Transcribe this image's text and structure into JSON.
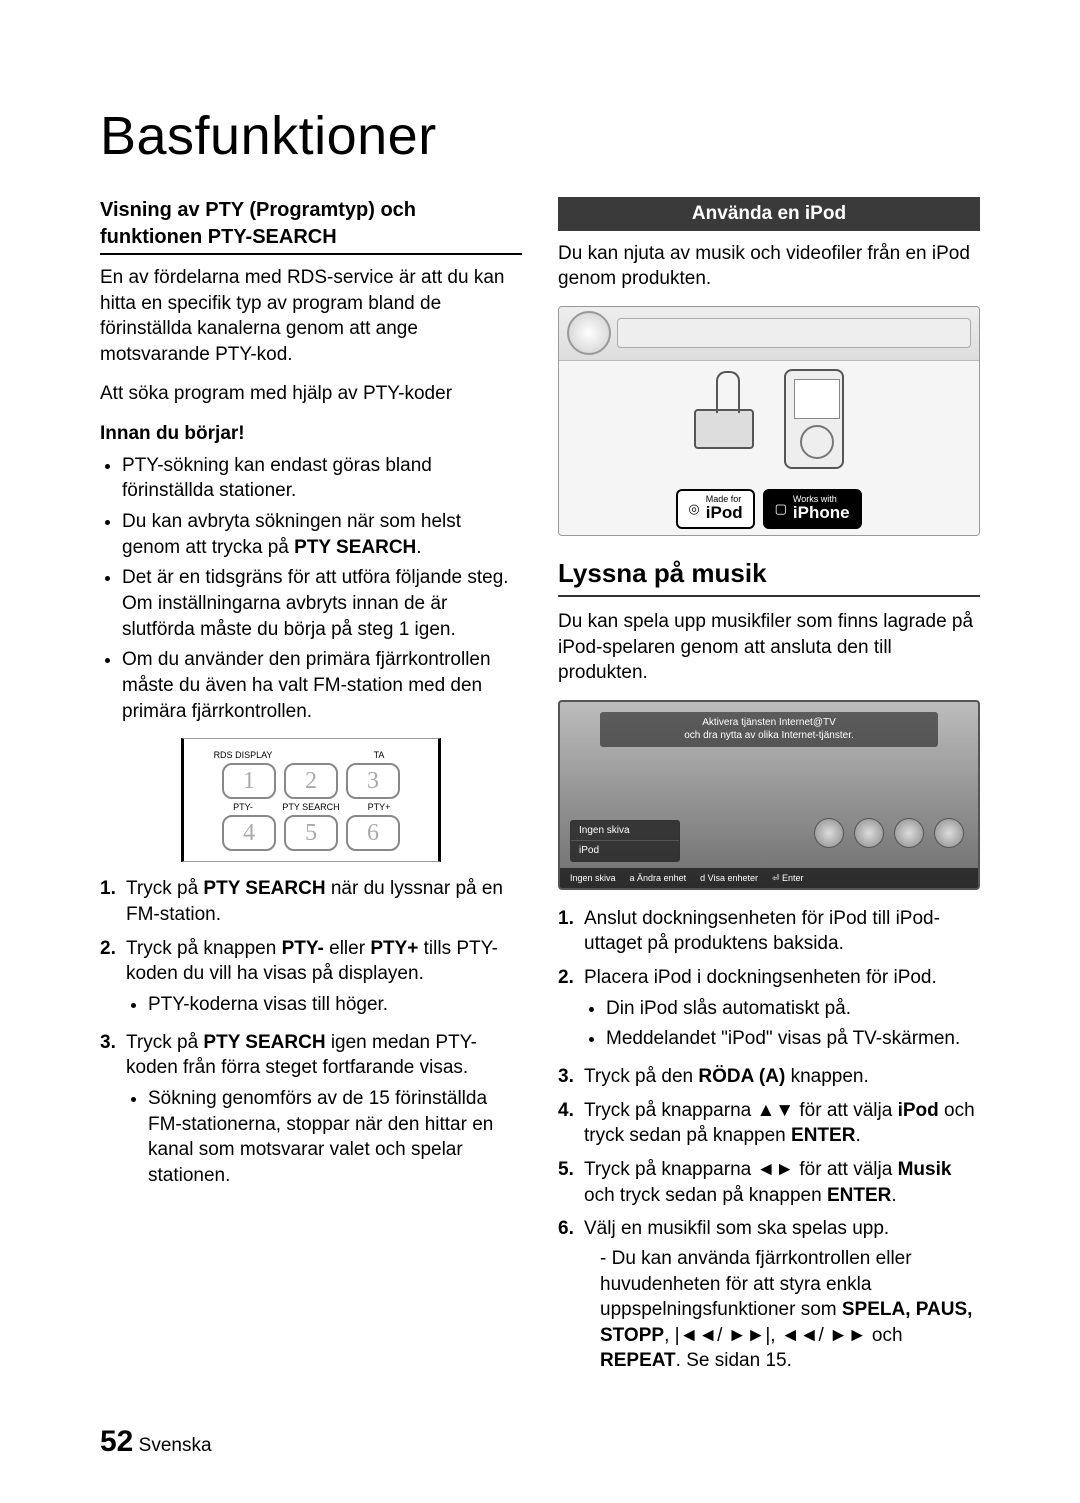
{
  "page": {
    "title": "Basfunktioner",
    "number": "52",
    "lang": "Svenska"
  },
  "left": {
    "h3_line1": "Visning av PTY (Programtyp) och",
    "h3_line2": "funktionen PTY-SEARCH",
    "intro": "En av fördelarna med RDS-service är att du kan hitta en specifik typ av program bland de förinställda kanalerna genom att ange motsvarande PTY-kod.",
    "sub1": "Att söka program med hjälp av PTY-koder",
    "sub2": "Innan du börjar!",
    "bullets": [
      "PTY-sökning kan endast göras bland förinställda stationer.",
      {
        "pre": "Du kan avbryta sökningen när som helst genom att trycka på ",
        "bold": "PTY SEARCH",
        "post": "."
      },
      "Det är en tidsgräns för att utföra följande steg. Om inställningarna avbryts innan de är slutförda måste du börja på steg 1 igen.",
      "Om du använder den primära fjärrkontrollen måste du även ha valt FM-station med den primära fjärrkontrollen."
    ],
    "remote": {
      "row1_labels": [
        "RDS DISPLAY",
        "",
        "TA"
      ],
      "row1_keys": [
        "1",
        "2",
        "3"
      ],
      "row2_labels": [
        "PTY-",
        "PTY SEARCH",
        "PTY+"
      ],
      "row2_keys": [
        "4",
        "5",
        "6"
      ]
    },
    "steps": [
      {
        "pre": "Tryck på ",
        "bold": "PTY SEARCH",
        "post": " när du lyssnar på en FM-station."
      },
      {
        "pre": "Tryck på knappen ",
        "bold": "PTY-",
        "mid": " eller ",
        "bold2": "PTY+",
        "post": " tills PTY-koden du vill ha visas på displayen.",
        "sub": "PTY-koderna visas till höger."
      },
      {
        "pre": "Tryck på ",
        "bold": "PTY SEARCH",
        "post": " igen medan PTY-koden från förra steget fortfarande visas.",
        "sub": "Sökning genomförs av de 15 förinställda FM-stationerna, stoppar när den hittar en kanal som motsvarar valet och spelar stationen."
      }
    ]
  },
  "right": {
    "section_bar": "Använda en iPod",
    "intro": "Du kan njuta av musik och videofiler från en iPod genom produkten.",
    "badge_made_small": "Made for",
    "badge_made_big": "iPod",
    "badge_works_small": "Works with",
    "badge_works_big": "iPhone",
    "h2": "Lyssna på musik",
    "para": "Du kan spela upp musikfiler som finns lagrade på iPod-spelaren genom att ansluta den till produkten.",
    "screen": {
      "banner_l1": "Aktivera tjänsten Internet@TV",
      "banner_l2": "och dra nytta av olika Internet-tjänster.",
      "menu1": "Ingen skiva",
      "menu2": "iPod",
      "f1": "Ingen skiva",
      "f2": "Ändra enhet",
      "f3": "Visa enheter",
      "f4": "Enter"
    },
    "steps": [
      {
        "text": "Anslut dockningsenheten för iPod till iPod-uttaget på produktens baksida."
      },
      {
        "text": "Placera iPod i dockningsenheten för iPod.",
        "subs": [
          "Din iPod slås automatiskt på.",
          "Meddelandet \"iPod\" visas på TV-skärmen."
        ]
      },
      {
        "pre": "Tryck på den ",
        "bold": "RÖDA (A)",
        "post": " knappen."
      },
      {
        "pre": "Tryck på knapparna ▲▼ för att välja ",
        "bold": "iPod",
        "mid": " och tryck sedan på knappen ",
        "bold2": "ENTER",
        "post": "."
      },
      {
        "pre": "Tryck på knapparna ◄► för att välja ",
        "bold": "Musik",
        "mid": " och tryck sedan på knappen ",
        "bold2": "ENTER",
        "post": "."
      },
      {
        "text": "Välj en musikfil som ska spelas upp.",
        "dash_pre": "Du kan använda fjärrkontrollen eller huvudenheten för att styra enkla uppspelningsfunktioner som ",
        "dash_bold": "SPELA, PAUS, STOPP",
        "dash_mid": ", |◄◄/ ►►|, ◄◄/ ►► och ",
        "dash_bold2": "REPEAT",
        "dash_post": ". Se sidan 15."
      }
    ]
  }
}
